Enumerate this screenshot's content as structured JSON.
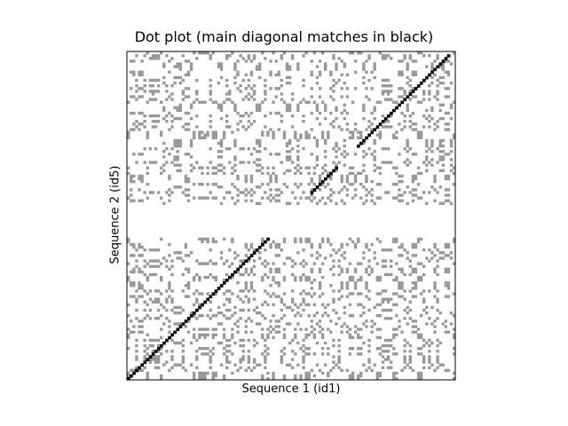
{
  "chart_data": {
    "type": "heatmap",
    "title": "Dot plot (main diagonal matches in black)",
    "xlabel": "Sequence 1 (id1)",
    "ylabel": "Sequence 2 (id5)",
    "x_ticks": [],
    "y_ticks": [],
    "grid": false,
    "sequence1_length": 120,
    "sequence2_length": 120,
    "gap_in_sequence2": [
      53,
      64
    ],
    "colors": {
      "background": "#ffffff",
      "match": "#999999",
      "diagonal_match": "#000000",
      "frame": "#000000"
    },
    "diagonal_segments": [
      {
        "x_start": 1,
        "x_end": 55,
        "y_start": 1,
        "y_end": 55
      },
      {
        "x_start": 68,
        "x_end": 77,
        "y_start": 69,
        "y_end": 78
      },
      {
        "x_start": 85,
        "x_end": 118,
        "y_start": 86,
        "y_end": 119
      }
    ]
  }
}
